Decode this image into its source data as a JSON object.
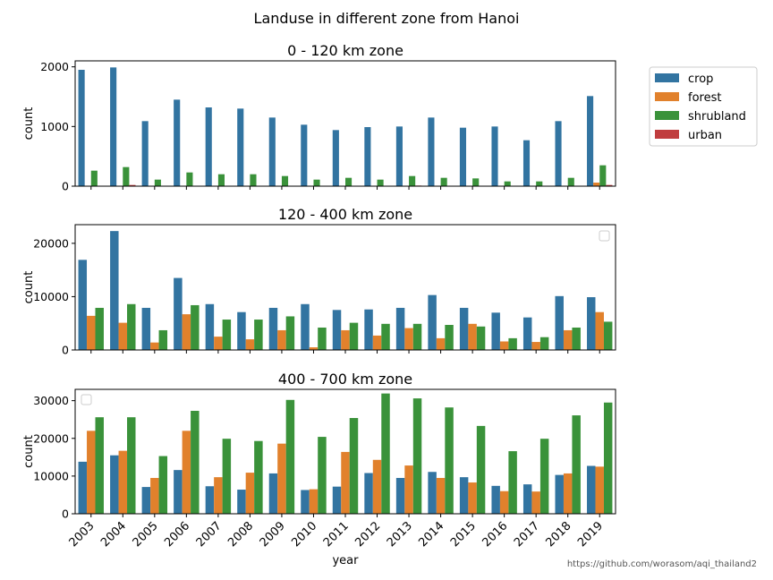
{
  "figure": {
    "suptitle": "Landuse in different zone from Hanoi",
    "watermark": "https://github.com/worasom/aqi_thailand2"
  },
  "legend": {
    "entries": [
      {
        "name": "crop",
        "color": "#3274a1"
      },
      {
        "name": "forest",
        "color": "#e1812c"
      },
      {
        "name": "shrubland",
        "color": "#3a923a"
      },
      {
        "name": "urban",
        "color": "#c03d3e"
      }
    ]
  },
  "chart_data": [
    {
      "type": "bar",
      "title": "0 - 120 km zone",
      "xlabel": "",
      "ylabel": "count",
      "ylim": [
        0,
        2100
      ],
      "yticks": [
        0,
        1000,
        2000
      ],
      "legend": "outside-right",
      "categories": [
        "2003",
        "2004",
        "2005",
        "2006",
        "2007",
        "2008",
        "2009",
        "2010",
        "2011",
        "2012",
        "2013",
        "2014",
        "2015",
        "2016",
        "2017",
        "2018",
        "2019"
      ],
      "series": [
        {
          "name": "crop",
          "color": "#3274a1",
          "values": [
            1950,
            1990,
            1090,
            1450,
            1320,
            1300,
            1150,
            1030,
            940,
            990,
            1000,
            1150,
            980,
            1000,
            770,
            1090,
            1510
          ]
        },
        {
          "name": "forest",
          "color": "#e1812c",
          "values": [
            0,
            0,
            0,
            0,
            0,
            0,
            0,
            0,
            0,
            0,
            0,
            0,
            0,
            0,
            0,
            0,
            60
          ]
        },
        {
          "name": "shrubland",
          "color": "#3a923a",
          "values": [
            260,
            320,
            110,
            230,
            200,
            200,
            170,
            110,
            140,
            110,
            170,
            140,
            130,
            80,
            80,
            140,
            350
          ]
        },
        {
          "name": "urban",
          "color": "#c03d3e",
          "values": [
            0,
            20,
            0,
            0,
            0,
            0,
            0,
            0,
            0,
            0,
            10,
            0,
            0,
            0,
            0,
            0,
            20
          ]
        }
      ]
    },
    {
      "type": "bar",
      "title": "120 - 400 km zone",
      "xlabel": "",
      "ylabel": "count",
      "ylim": [
        0,
        23500
      ],
      "yticks": [
        0,
        10000,
        20000
      ],
      "legend": "top-right (empty)",
      "categories": [
        "2003",
        "2004",
        "2005",
        "2006",
        "2007",
        "2008",
        "2009",
        "2010",
        "2011",
        "2012",
        "2013",
        "2014",
        "2015",
        "2016",
        "2017",
        "2018",
        "2019"
      ],
      "series": [
        {
          "name": "crop",
          "color": "#3274a1",
          "values": [
            16900,
            22300,
            7900,
            13500,
            8600,
            7100,
            7900,
            8600,
            7500,
            7600,
            7900,
            10300,
            7900,
            7000,
            6100,
            10100,
            9900
          ]
        },
        {
          "name": "forest",
          "color": "#e1812c",
          "values": [
            6400,
            5100,
            1400,
            6700,
            2500,
            2000,
            3700,
            500,
            3700,
            2700,
            4100,
            2200,
            4900,
            1600,
            1500,
            3700,
            7100
          ]
        },
        {
          "name": "shrubland",
          "color": "#3a923a",
          "values": [
            7900,
            8600,
            3700,
            8400,
            5700,
            5700,
            6300,
            4200,
            5100,
            4900,
            4900,
            4700,
            4400,
            2200,
            2400,
            4200,
            5300
          ]
        }
      ]
    },
    {
      "type": "bar",
      "title": "400 - 700 km zone",
      "xlabel": "year",
      "ylabel": "count",
      "ylim": [
        0,
        33000
      ],
      "yticks": [
        0,
        10000,
        20000,
        30000
      ],
      "legend": "top-left (empty)",
      "categories": [
        "2003",
        "2004",
        "2005",
        "2006",
        "2007",
        "2008",
        "2009",
        "2010",
        "2011",
        "2012",
        "2013",
        "2014",
        "2015",
        "2016",
        "2017",
        "2018",
        "2019"
      ],
      "series": [
        {
          "name": "crop",
          "color": "#3274a1",
          "values": [
            13800,
            15500,
            7100,
            11600,
            7300,
            6400,
            10700,
            6300,
            7200,
            10800,
            9500,
            11100,
            9700,
            7400,
            7800,
            10300,
            12700
          ]
        },
        {
          "name": "forest",
          "color": "#e1812c",
          "values": [
            22000,
            16700,
            9500,
            22000,
            9700,
            10900,
            18600,
            6500,
            16400,
            14300,
            12800,
            9500,
            8300,
            6000,
            5900,
            10700,
            12500
          ]
        },
        {
          "name": "shrubland",
          "color": "#3a923a",
          "values": [
            25600,
            25600,
            15300,
            27300,
            19900,
            19300,
            30200,
            20400,
            25400,
            31900,
            30600,
            28200,
            23300,
            16600,
            19900,
            26100,
            29500
          ]
        }
      ]
    }
  ]
}
